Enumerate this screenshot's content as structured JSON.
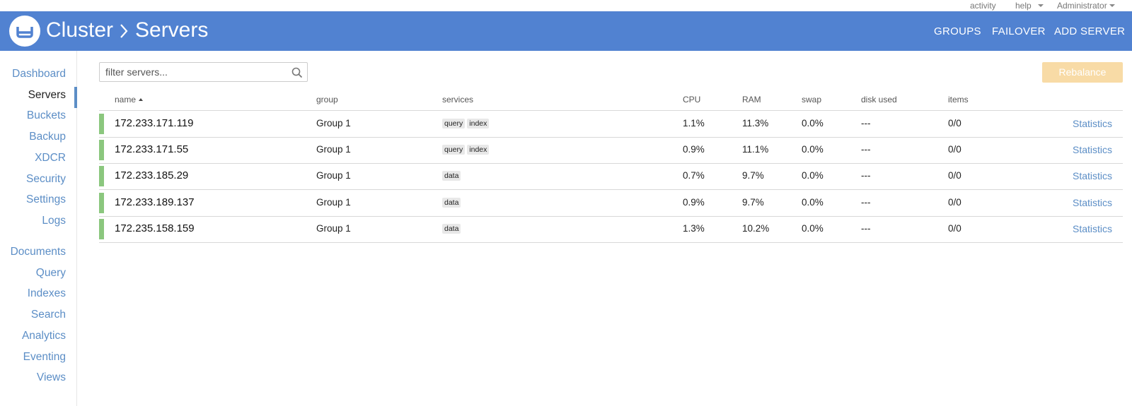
{
  "topbar": {
    "links": [
      "activity",
      "help",
      "Administrator"
    ]
  },
  "header": {
    "breadcrumb": [
      "Cluster",
      "Servers"
    ],
    "actions": [
      "GROUPS",
      "FAILOVER",
      "ADD SERVER"
    ]
  },
  "sidebar": {
    "active": "Servers",
    "groups": [
      [
        "Dashboard",
        "Servers",
        "Buckets",
        "Backup",
        "XDCR",
        "Security",
        "Settings",
        "Logs"
      ],
      [
        "Documents",
        "Query",
        "Indexes",
        "Search",
        "Analytics",
        "Eventing",
        "Views"
      ]
    ]
  },
  "toolbar": {
    "filter_placeholder": "filter servers...",
    "button": "Rebalance"
  },
  "table": {
    "columns": [
      "name",
      "group",
      "services",
      "CPU",
      "RAM",
      "swap",
      "disk used",
      "items"
    ],
    "link": "Statistics",
    "rows": [
      {
        "name": "172.233.171.119",
        "group": "Group 1",
        "services": [
          "query",
          "index"
        ],
        "cpu": "1.1%",
        "ram": "11.3%",
        "swap": "0.0%",
        "disk": "---",
        "items": "0/0"
      },
      {
        "name": "172.233.171.55",
        "group": "Group 1",
        "services": [
          "query",
          "index"
        ],
        "cpu": "0.9%",
        "ram": "11.1%",
        "swap": "0.0%",
        "disk": "---",
        "items": "0/0"
      },
      {
        "name": "172.233.185.29",
        "group": "Group 1",
        "services": [
          "data"
        ],
        "cpu": "0.7%",
        "ram": "9.7%",
        "swap": "0.0%",
        "disk": "---",
        "items": "0/0"
      },
      {
        "name": "172.233.189.137",
        "group": "Group 1",
        "services": [
          "data"
        ],
        "cpu": "0.9%",
        "ram": "9.7%",
        "swap": "0.0%",
        "disk": "---",
        "items": "0/0"
      },
      {
        "name": "172.235.158.159",
        "group": "Group 1",
        "services": [
          "data"
        ],
        "cpu": "1.3%",
        "ram": "10.2%",
        "swap": "0.0%",
        "disk": "---",
        "items": "0/0"
      }
    ]
  }
}
